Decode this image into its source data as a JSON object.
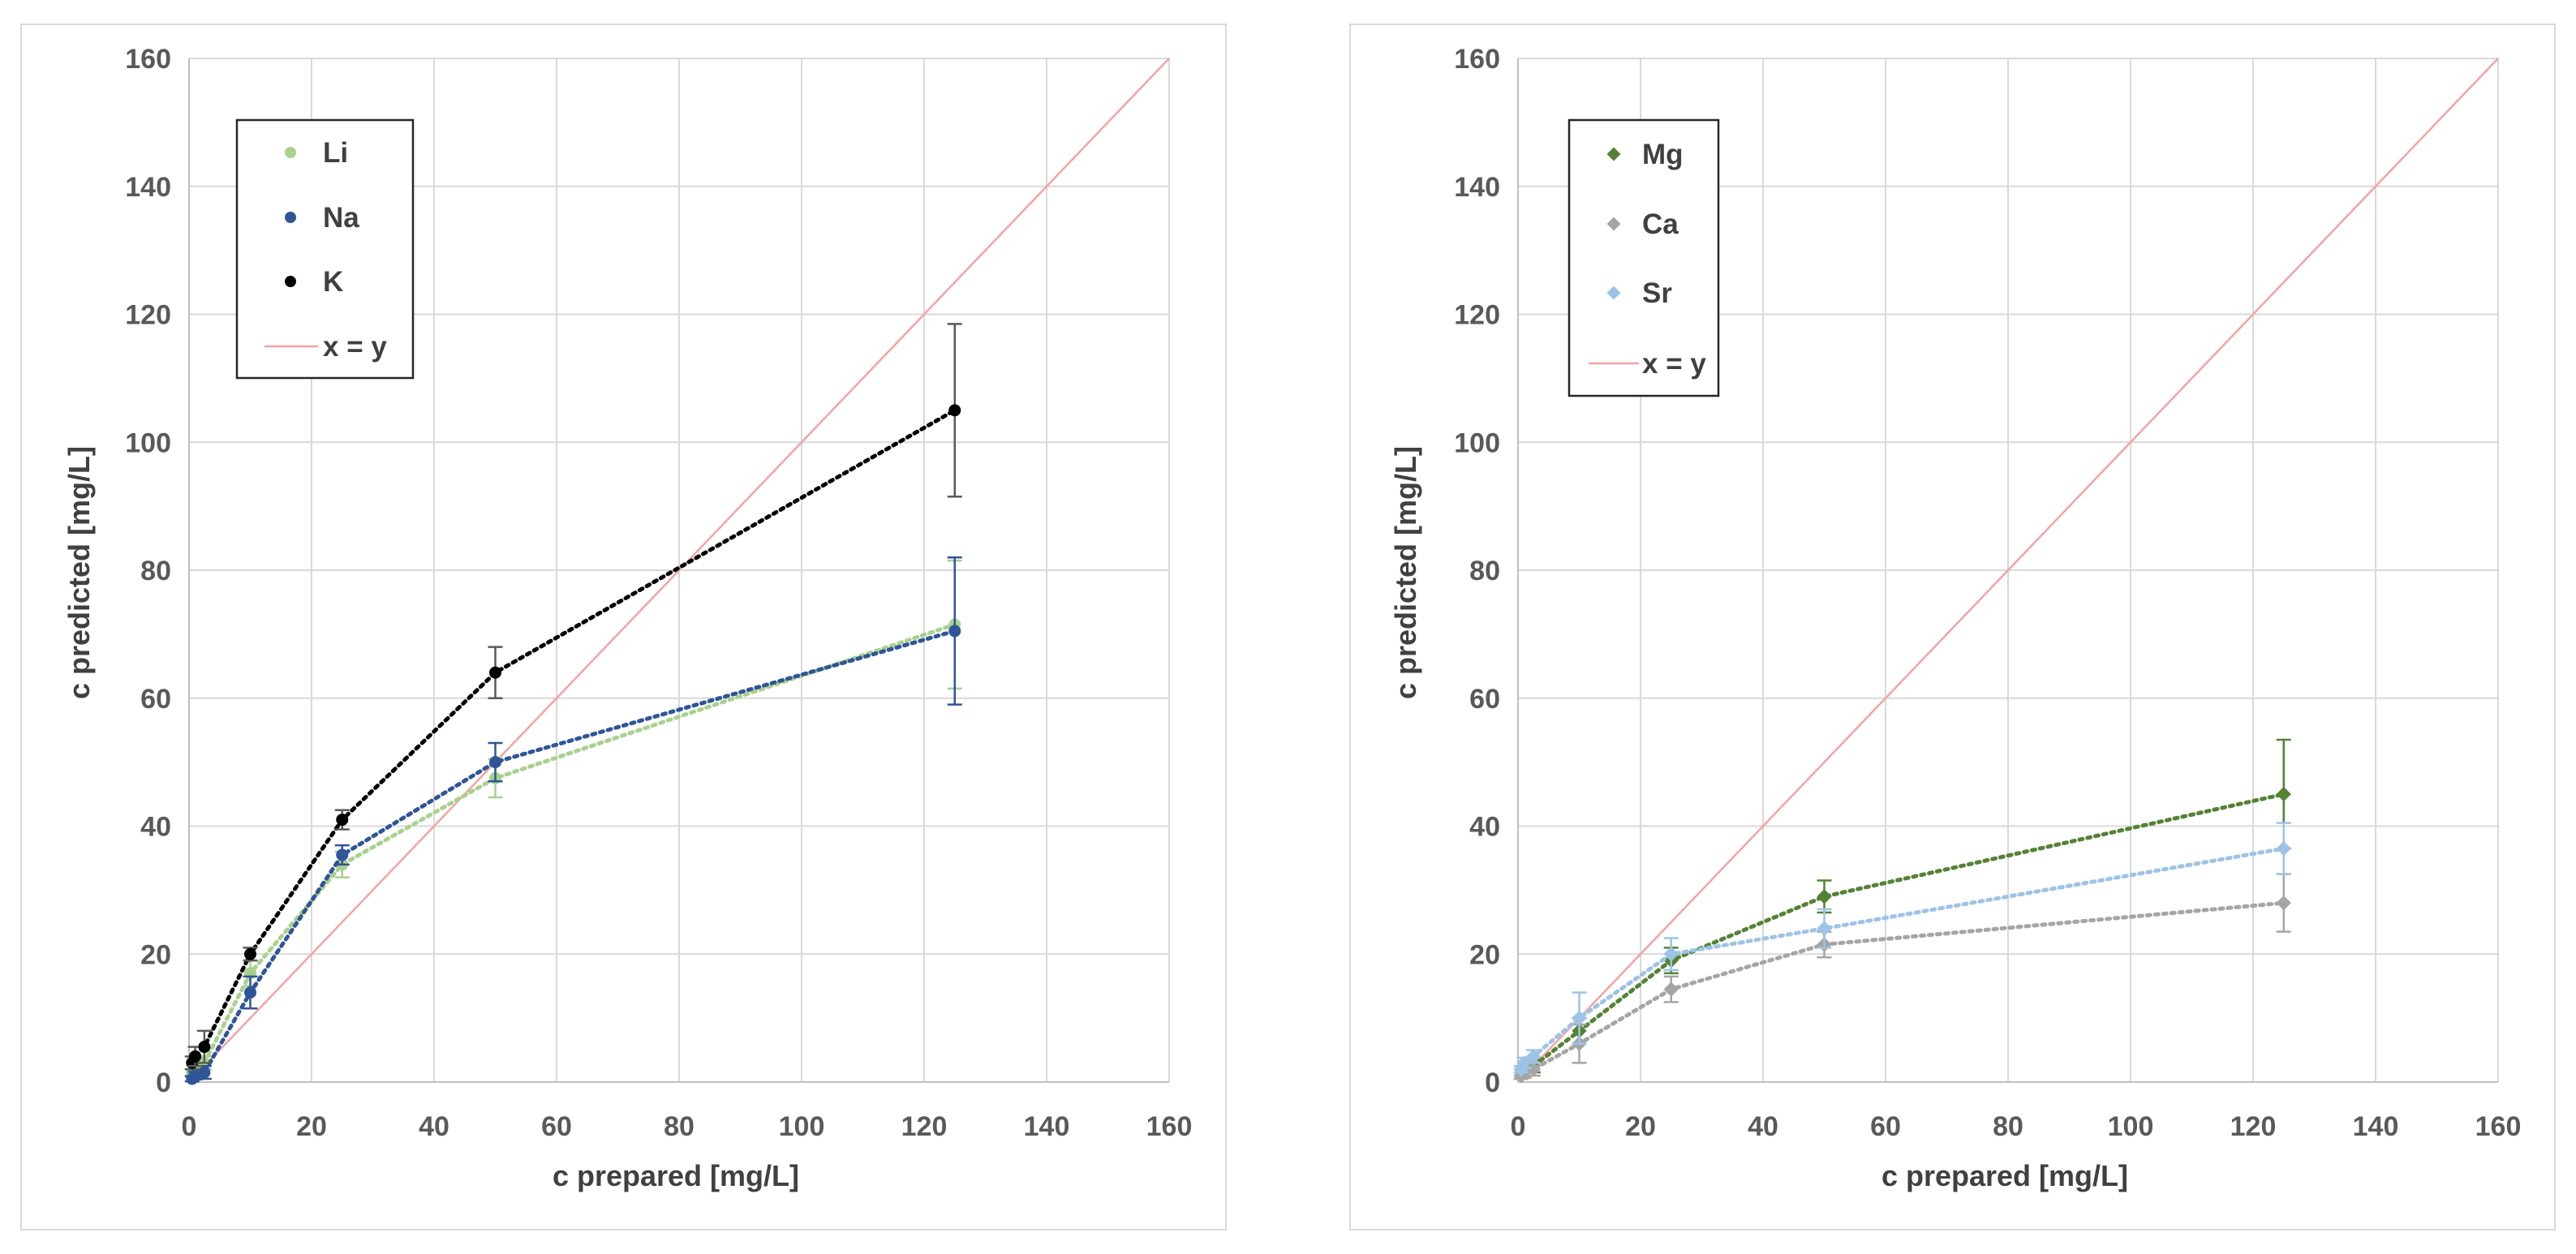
{
  "chart_data": [
    {
      "type": "scatter",
      "xlabel": "c prepared [mg/L]",
      "ylabel": "c predicted [mg/L]",
      "xlim": [
        0,
        160
      ],
      "ylim": [
        0,
        160
      ],
      "xticks": [
        "0",
        "20",
        "40",
        "60",
        "80",
        "100",
        "120",
        "140",
        "160"
      ],
      "yticks": [
        "0",
        "20",
        "40",
        "60",
        "80",
        "100",
        "120",
        "140",
        "160"
      ],
      "grid": true,
      "legend_position": "top-left",
      "marker": "circle",
      "reference_line": {
        "name": "x = y",
        "color": "#f4a3a3"
      },
      "series": [
        {
          "name": "Li",
          "color": "#a9d18e",
          "x": [
            0.5,
            1,
            2.5,
            10,
            25,
            50,
            125
          ],
          "y": [
            1.5,
            2,
            3,
            17,
            34,
            47.5,
            71.5
          ],
          "err": [
            0.5,
            0.8,
            1,
            2,
            2,
            3,
            10
          ]
        },
        {
          "name": "Na",
          "color": "#2f5597",
          "x": [
            0.5,
            1,
            2.5,
            10,
            25,
            50,
            125
          ],
          "y": [
            0.5,
            1,
            1.5,
            14,
            35.5,
            50,
            70.5
          ],
          "err": [
            0.4,
            0.6,
            1,
            2.5,
            1.5,
            3,
            11.5
          ]
        },
        {
          "name": "K",
          "color": "#000000",
          "x": [
            0.5,
            1,
            2.5,
            10,
            25,
            50,
            125
          ],
          "y": [
            3,
            4,
            5.5,
            20,
            41,
            64,
            105
          ],
          "err": [
            1,
            1.5,
            2.5,
            1,
            1.5,
            4,
            13.5
          ]
        }
      ]
    },
    {
      "type": "scatter",
      "xlabel": "c prepared [mg/L]",
      "ylabel": "c predicted [mg/L]",
      "xlim": [
        0,
        160
      ],
      "ylim": [
        0,
        160
      ],
      "xticks": [
        "0",
        "20",
        "40",
        "60",
        "80",
        "100",
        "120",
        "140",
        "160"
      ],
      "yticks": [
        "0",
        "20",
        "40",
        "60",
        "80",
        "100",
        "120",
        "140",
        "160"
      ],
      "grid": true,
      "legend_position": "top-left",
      "marker": "diamond",
      "reference_line": {
        "name": "x = y",
        "color": "#f4a3a3"
      },
      "series": [
        {
          "name": "Mg",
          "color": "#548235",
          "x": [
            0.5,
            1,
            2.5,
            10,
            25,
            50,
            125
          ],
          "y": [
            1,
            1.5,
            2.5,
            8,
            19,
            29,
            45
          ],
          "err": [
            0.5,
            0.8,
            1,
            2,
            2,
            2.5,
            8.5
          ]
        },
        {
          "name": "Ca",
          "color": "#a5a5a5",
          "x": [
            0.5,
            1,
            2.5,
            10,
            25,
            50,
            125
          ],
          "y": [
            1,
            1.5,
            2,
            6,
            14.5,
            21.5,
            28
          ],
          "err": [
            0.5,
            0.8,
            1,
            3,
            2,
            2,
            4.5
          ]
        },
        {
          "name": "Sr",
          "color": "#9dc3e6",
          "x": [
            0.5,
            1,
            2.5,
            10,
            25,
            50,
            125
          ],
          "y": [
            2,
            3,
            4,
            10,
            20,
            24,
            36.5
          ],
          "err": [
            0.5,
            0.8,
            1,
            4,
            2.5,
            3,
            4
          ]
        }
      ]
    }
  ]
}
